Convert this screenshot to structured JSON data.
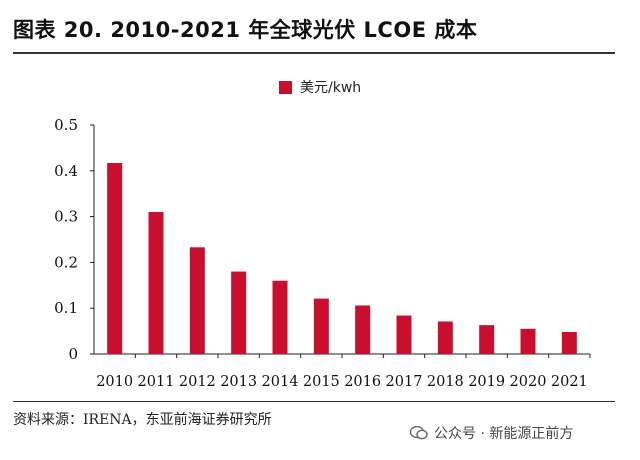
{
  "title": "图表 20. 2010-2021 年全球光伏 LCOE 成本",
  "source": "资料来源：IRENA，东亚前海证券研究所",
  "watermark": "公众号 · 新能源正前方",
  "colors": {
    "bar": "#c8102e",
    "axis": "#222222"
  },
  "chart_data": {
    "type": "bar",
    "categories": [
      "2010",
      "2011",
      "2012",
      "2013",
      "2014",
      "2015",
      "2016",
      "2017",
      "2018",
      "2019",
      "2020",
      "2021"
    ],
    "series": [
      {
        "name": "美元/kwh",
        "values": [
          0.417,
          0.31,
          0.233,
          0.18,
          0.16,
          0.121,
          0.106,
          0.084,
          0.071,
          0.063,
          0.055,
          0.048
        ]
      }
    ],
    "ylim": [
      0,
      0.5
    ],
    "yticks": [
      "0",
      "0.1",
      "0.2",
      "0.3",
      "0.4",
      "0.5"
    ],
    "ytick_values": [
      0,
      0.1,
      0.2,
      0.3,
      0.4,
      0.5
    ],
    "grid": false,
    "legend_position": "top-center"
  }
}
